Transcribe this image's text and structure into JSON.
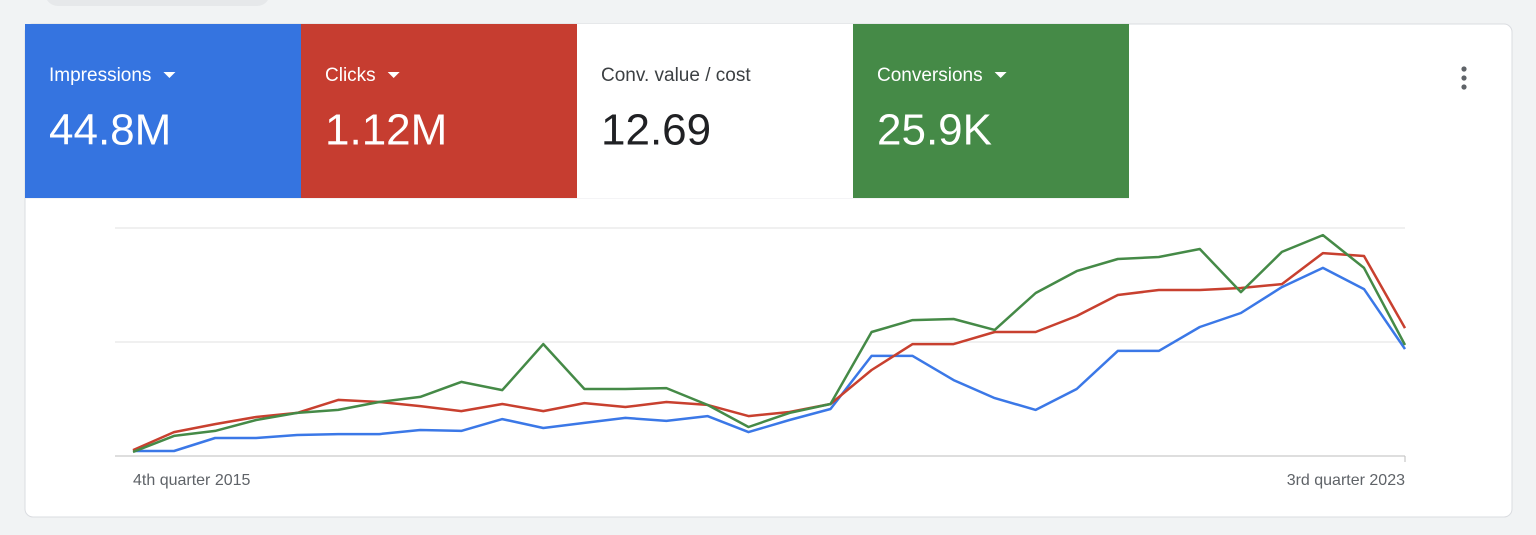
{
  "metrics": [
    {
      "label": "Impressions",
      "value": "44.8M",
      "color": "#3574e0",
      "dropdown": true
    },
    {
      "label": "Clicks",
      "value": "1.12M",
      "color": "#c63d30",
      "dropdown": true
    },
    {
      "label": "Conv. value / cost",
      "value": "12.69",
      "color": "#ffffff",
      "dropdown": false
    },
    {
      "label": "Conversions",
      "value": "25.9K",
      "color": "#458a47",
      "dropdown": true
    }
  ],
  "chart_data": {
    "type": "line",
    "categories": [
      "4th quarter 2015",
      null,
      null,
      null,
      null,
      null,
      null,
      null,
      null,
      null,
      null,
      null,
      null,
      null,
      null,
      null,
      null,
      null,
      null,
      null,
      null,
      null,
      null,
      null,
      null,
      null,
      null,
      null,
      null,
      null,
      null,
      "3rd quarter 2023"
    ],
    "ylim": [
      0,
      100
    ],
    "series": [
      {
        "color": "#3b78e7",
        "values": [
          2.2,
          2.2,
          7.9,
          7.9,
          9.2,
          9.6,
          9.6,
          11.4,
          11.0,
          16.2,
          12.3,
          14.5,
          16.7,
          15.4,
          17.5,
          10.5,
          15.8,
          20.6,
          43.9,
          43.9,
          33.3,
          25.4,
          20.2,
          29.4,
          46.1,
          46.1,
          56.6,
          62.7,
          74.1,
          82.5,
          73.2,
          46.9
        ]
      },
      {
        "color": "#c8402f",
        "values": [
          2.6,
          10.5,
          14.0,
          17.1,
          18.9,
          24.6,
          23.7,
          21.9,
          19.7,
          22.8,
          19.7,
          23.2,
          21.5,
          23.7,
          22.4,
          17.5,
          19.3,
          22.8,
          37.7,
          49.1,
          49.1,
          54.4,
          54.4,
          61.4,
          70.6,
          72.8,
          72.8,
          73.7,
          75.4,
          89.0,
          87.7,
          56.1
        ]
      },
      {
        "color": "#458a47",
        "values": [
          1.8,
          8.8,
          11.0,
          15.8,
          18.9,
          20.2,
          23.7,
          25.9,
          32.5,
          28.9,
          49.1,
          29.4,
          29.4,
          29.8,
          22.4,
          12.7,
          18.9,
          22.8,
          54.4,
          59.6,
          60.1,
          55.3,
          71.5,
          81.1,
          86.4,
          87.3,
          90.8,
          71.9,
          89.5,
          96.9,
          82.5,
          48.7
        ]
      }
    ]
  }
}
